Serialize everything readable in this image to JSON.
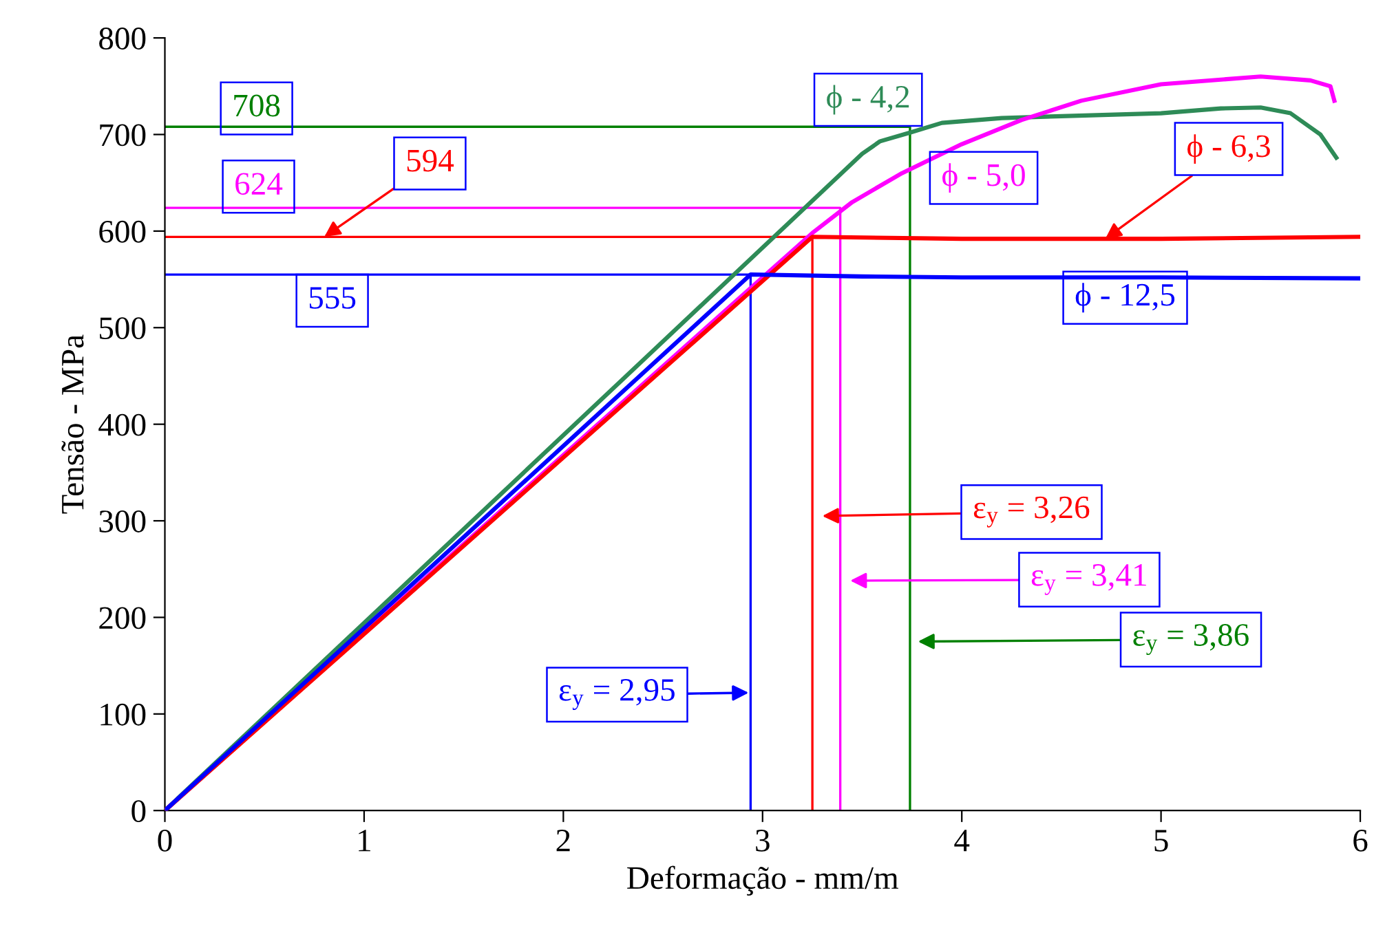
{
  "chart_data": {
    "type": "line",
    "xlabel": "Deformação - mm/m",
    "ylabel": "Tensão - MPa",
    "xlim": [
      0,
      6
    ],
    "xticks": [
      0,
      1,
      2,
      3,
      4,
      5,
      6
    ],
    "ylim": [
      0,
      800
    ],
    "yticks": [
      0,
      100,
      200,
      300,
      400,
      500,
      600,
      700,
      800
    ],
    "grid": false,
    "legend": false,
    "marker": "none",
    "line_style": "solid",
    "series": [
      {
        "color": "#2e8b57",
        "x": [
          0,
          3.5,
          3.59,
          3.74,
          3.9,
          4.2,
          4.5,
          5.0,
          5.3,
          5.5,
          5.65,
          5.8,
          5.88
        ],
        "values": [
          0,
          680,
          693,
          702,
          712,
          717,
          719,
          722,
          727,
          728,
          722,
          700,
          676
        ]
      },
      {
        "color": "#ff00ff",
        "x": [
          0,
          3.25,
          3.45,
          3.7,
          4.0,
          4.3,
          4.6,
          5.0,
          5.5,
          5.75,
          5.85,
          5.87
        ],
        "values": [
          0,
          598,
          630,
          660,
          690,
          715,
          735,
          752,
          760,
          756,
          750,
          735
        ]
      },
      {
        "color": "#ff0000",
        "x": [
          0,
          3.25,
          4.0,
          5.0,
          6.0
        ],
        "values": [
          0,
          594,
          592,
          592,
          594
        ]
      },
      {
        "color": "#0000ff",
        "x": [
          0,
          2.94,
          3.5,
          4.0,
          5.0,
          6.0
        ],
        "values": [
          0,
          555,
          553,
          552,
          552,
          551
        ]
      },
      {
        "color": "#008000",
        "x": [
          0,
          3.74,
          3.74
        ],
        "values": [
          708,
          708,
          0
        ]
      },
      {
        "color": "#ff00ff",
        "x": [
          0,
          3.39,
          3.39
        ],
        "values": [
          624,
          624,
          0
        ]
      },
      {
        "color": "#ff0000",
        "x": [
          0,
          3.25,
          3.25
        ],
        "values": [
          594,
          594,
          0
        ]
      },
      {
        "color": "#0000ff",
        "x": [
          0,
          2.94,
          2.94
        ],
        "values": [
          555,
          555,
          0
        ]
      }
    ],
    "annotations": [
      "708",
      "624",
      {
        "text": "594",
        "x": 0.8,
        "y": 594
      },
      "555",
      "ϕ - 4,2",
      "ϕ - 5,0",
      {
        "text": "ϕ - 6,3",
        "x": 4.72,
        "y": 592
      },
      "ϕ - 12,5",
      "ε$_{y}$ = 3,26",
      "ε$_{y}$ = 3,41",
      "ε$_{y}$ = 3,86",
      "ε$_{y}$ = 2,95"
    ]
  }
}
